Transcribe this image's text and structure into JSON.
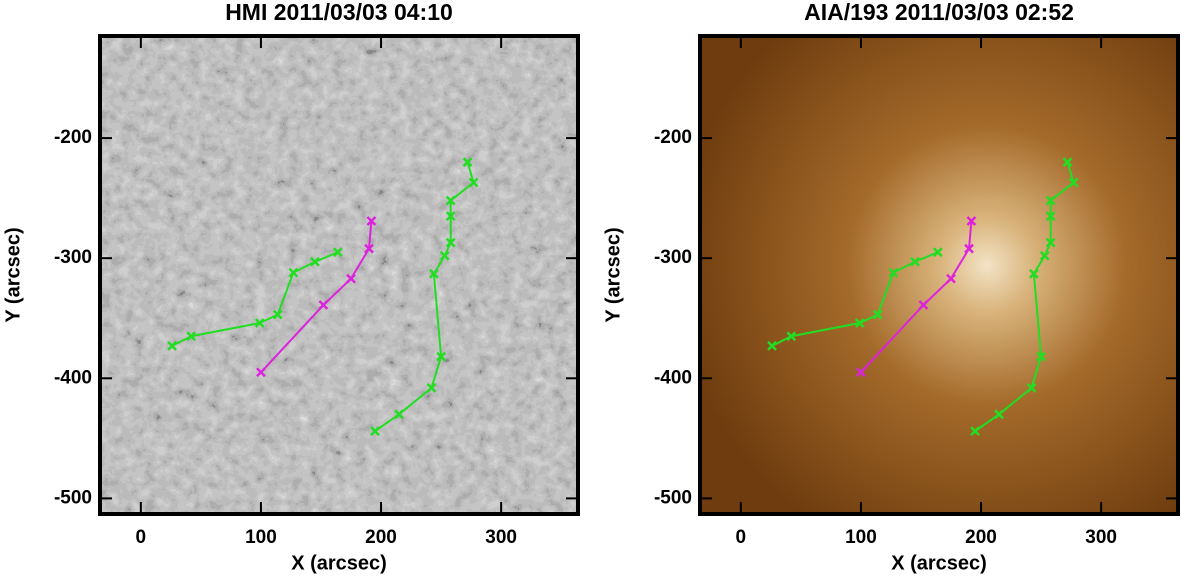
{
  "chart_data": [
    {
      "type": "line",
      "title": "HMI 2011/03/03 04:10",
      "x_label": "X (arcsec)",
      "y_label": "Y (arcsec)",
      "xlim": [
        -34,
        364
      ],
      "ylim": [
        -513,
        -115
      ],
      "xticks": [
        0,
        100,
        200,
        300
      ],
      "yticks": [
        -200,
        -300,
        -400,
        -500
      ],
      "background": "magnetogram",
      "marker": "x",
      "series": [
        {
          "color": "#22dd22",
          "x": [
            26,
            42,
            99,
            114,
            127,
            145,
            164
          ],
          "values": [
            -373,
            -365,
            -354,
            -347,
            -312,
            -303,
            -295
          ]
        },
        {
          "color": "#dd22dd",
          "x": [
            100,
            152,
            175,
            190,
            192
          ],
          "values": [
            -395,
            -339,
            -317,
            -292,
            -269
          ]
        },
        {
          "color": "#22dd22",
          "x": [
            195,
            215,
            242,
            250,
            244,
            253,
            258,
            258,
            258,
            277,
            272
          ],
          "values": [
            -444,
            -430,
            -408,
            -382,
            -313,
            -298,
            -287,
            -265,
            -252,
            -237,
            -220
          ]
        }
      ]
    },
    {
      "type": "line",
      "title": "AIA/193 2011/03/03 02:52",
      "x_label": "X (arcsec)",
      "y_label": "Y (arcsec)",
      "xlim": [
        -34,
        364
      ],
      "ylim": [
        -513,
        -115
      ],
      "xticks": [
        0,
        100,
        200,
        300
      ],
      "yticks": [
        -200,
        -300,
        -400,
        -500
      ],
      "background": "euv",
      "marker": "x",
      "series": [
        {
          "color": "#22dd22",
          "x": [
            26,
            42,
            99,
            114,
            127,
            145,
            164
          ],
          "values": [
            -373,
            -365,
            -354,
            -347,
            -312,
            -303,
            -295
          ]
        },
        {
          "color": "#dd22dd",
          "x": [
            100,
            152,
            175,
            190,
            192
          ],
          "values": [
            -395,
            -339,
            -317,
            -292,
            -269
          ]
        },
        {
          "color": "#22dd22",
          "x": [
            195,
            215,
            242,
            250,
            244,
            253,
            258,
            258,
            258,
            277,
            272
          ],
          "values": [
            -444,
            -430,
            -408,
            -382,
            -313,
            -298,
            -287,
            -265,
            -252,
            -237,
            -220
          ]
        }
      ]
    }
  ]
}
